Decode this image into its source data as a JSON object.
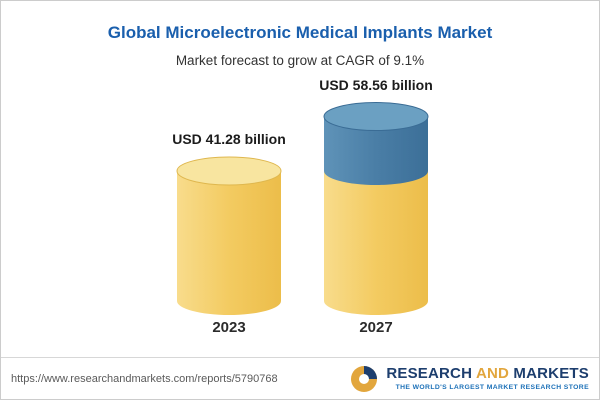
{
  "header": {
    "title": "Global Microelectronic Medical Implants Market",
    "subtitle": "Market forecast to grow at CAGR of 9.1%"
  },
  "chart_data": {
    "type": "bar",
    "title": "Global Microelectronic Medical Implants Market",
    "subtitle": "Market forecast to grow at CAGR of 9.1%",
    "categories": [
      "2023",
      "2027"
    ],
    "values": [
      41.28,
      58.56
    ],
    "unit": "USD billion",
    "cagr": "9.1%",
    "ylim": [
      0,
      65
    ],
    "legend": "none",
    "grid": false,
    "bars": [
      {
        "category": "2023",
        "label": "USD 41.28 billion",
        "total": 41.28,
        "segments": [
          {
            "color": "gold",
            "value": 41.28
          }
        ]
      },
      {
        "category": "2027",
        "label": "USD 58.56 billion",
        "total": 58.56,
        "segments": [
          {
            "color": "gold",
            "value": 41.28
          },
          {
            "color": "blue",
            "value": 17.28
          }
        ]
      }
    ]
  },
  "footer": {
    "url": "https://www.researchandmarkets.com/reports/5790768",
    "logo": {
      "research": "RESEARCH",
      "and": "AND",
      "markets": "MARKETS",
      "tagline": "THE WORLD'S LARGEST MARKET RESEARCH STORE"
    }
  },
  "colors": {
    "title_blue": "#1a5fad",
    "subtitle_text": "#333333",
    "label_text": "#1c1c1c",
    "gold_grad": [
      "#f8dc8c",
      "#f3cb61",
      "#ecbd4a"
    ],
    "blue_grad": [
      "#5f93b8",
      "#4a7ea6",
      "#3c6f98"
    ],
    "gold_top": "#f8e5a0",
    "blue_top": "#6ba0c2",
    "gold_edge": "#dfb74e",
    "blue_edge": "#3a6c95",
    "footer_navy": "#1d3e6e",
    "footer_gold": "#e2a63d",
    "tagline_blue": "#1d71b8",
    "url_gray": "#5a5a5a",
    "border_gray": "#cccccc"
  }
}
